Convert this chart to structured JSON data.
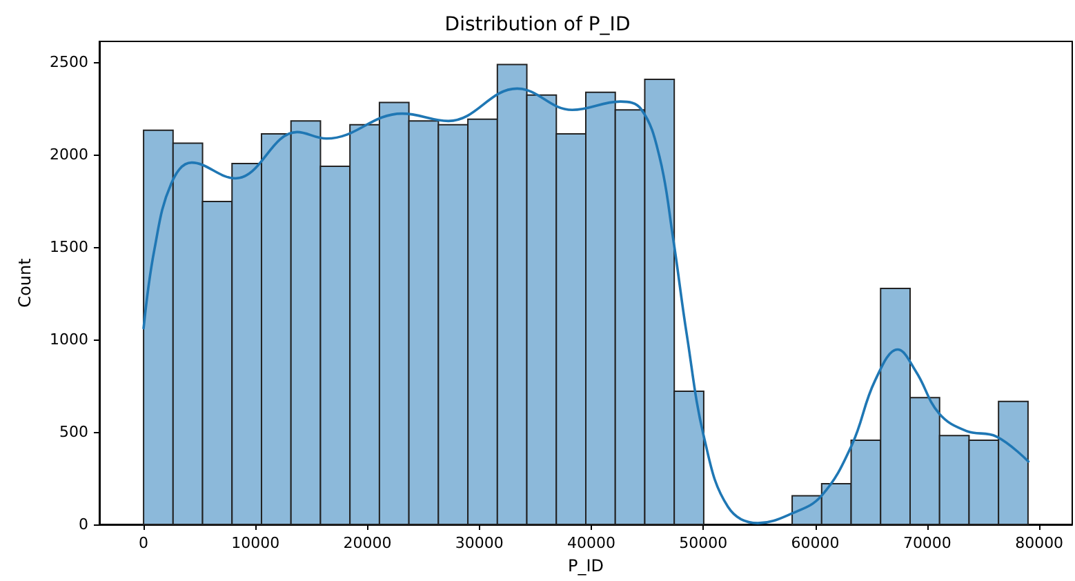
{
  "chart_data": {
    "type": "histogram",
    "title": "Distribution of P_ID",
    "xlabel": "P_ID",
    "ylabel": "Count",
    "xlim": [
      -3950,
      82950
    ],
    "xticks": [
      0,
      10000,
      20000,
      30000,
      40000,
      50000,
      60000,
      70000,
      80000
    ],
    "ylim": [
      0,
      2610
    ],
    "yticks": [
      0,
      500,
      1000,
      1500,
      2000,
      2500
    ],
    "grid": false,
    "series": [
      {
        "type": "histogram",
        "color": "#8cb9da",
        "bins": [
          0,
          2633,
          5267,
          7900,
          10533,
          13167,
          15800,
          18433,
          21067,
          23700,
          26333,
          28967,
          31600,
          34233,
          36867,
          39500,
          42133,
          44767,
          47400,
          50033,
          52667,
          55300,
          57933,
          60567,
          63200,
          65833,
          68467,
          71100,
          73733,
          76367,
          79000
        ],
        "values": [
          2130,
          2060,
          1745,
          1950,
          2110,
          2180,
          1935,
          2160,
          2280,
          2180,
          2160,
          2190,
          2485,
          2320,
          2110,
          2335,
          2240,
          2405,
          720,
          0,
          0,
          0,
          155,
          220,
          455,
          1275,
          685,
          480,
          455,
          665
        ]
      },
      {
        "type": "line",
        "color": "#1f77b4",
        "x": [
          0,
          980,
          2460,
          4300,
          8190,
          13720,
          16340,
          23100,
          27230,
          33370,
          38290,
          42590,
          44430,
          46070,
          47300,
          48520,
          50120,
          52200,
          54870,
          57940,
          60560,
          63270,
          65320,
          67360,
          69000,
          71050,
          73500,
          76170,
          79030
        ],
        "values": [
          1060,
          1490,
          1840,
          1955,
          1870,
          2120,
          2085,
          2220,
          2180,
          2355,
          2240,
          2285,
          2245,
          1990,
          1545,
          1025,
          455,
          95,
          7,
          60,
          155,
          430,
          775,
          945,
          825,
          600,
          505,
          475,
          340
        ]
      }
    ]
  }
}
